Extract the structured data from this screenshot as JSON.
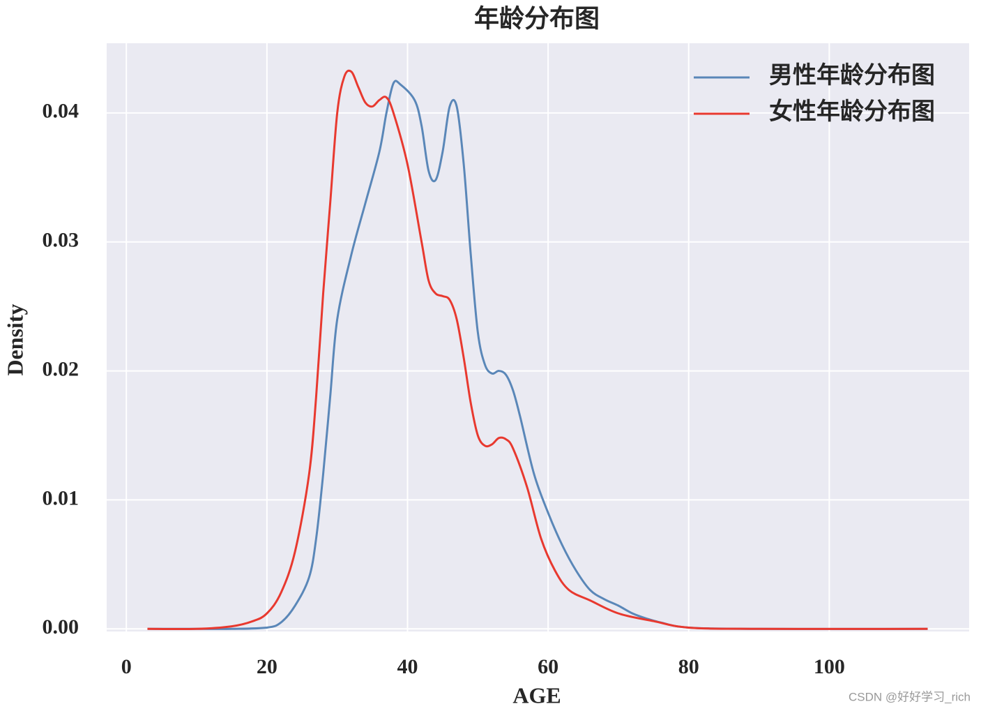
{
  "chart_data": {
    "type": "line",
    "title": "年龄分布图",
    "x_label": "AGE",
    "y_label": "Density",
    "xlim": [
      -2.8,
      119.9
    ],
    "ylim": [
      -0.0002,
      0.0454
    ],
    "xticks": [
      0,
      20,
      40,
      60,
      80,
      100
    ],
    "yticks": [
      {
        "value": 0,
        "label": "0.00"
      },
      0.01,
      0.02,
      0.03,
      0.04
    ],
    "grid": true,
    "legend": "upper right",
    "series": [
      {
        "name": "男性年龄分布图",
        "color": "#5a87b8",
        "x": [
          3,
          10,
          15,
          20,
          22,
          24,
          26,
          27,
          28,
          29,
          30,
          32,
          34,
          36,
          37,
          38,
          39,
          41,
          42,
          43,
          44,
          45,
          46,
          47,
          48,
          49,
          50,
          51,
          52,
          53,
          54,
          55,
          56,
          58,
          60,
          62,
          64,
          66,
          68,
          70,
          72,
          74,
          76,
          80,
          90,
          114
        ],
        "values": [
          0,
          0,
          0,
          0.0001,
          0.0005,
          0.0018,
          0.004,
          0.007,
          0.012,
          0.018,
          0.024,
          0.029,
          0.033,
          0.037,
          0.04,
          0.0423,
          0.0422,
          0.041,
          0.039,
          0.0355,
          0.0348,
          0.037,
          0.0405,
          0.0405,
          0.036,
          0.029,
          0.023,
          0.0205,
          0.0198,
          0.02,
          0.0197,
          0.0185,
          0.0165,
          0.012,
          0.009,
          0.0065,
          0.0045,
          0.003,
          0.0023,
          0.0018,
          0.0012,
          0.0008,
          0.0005,
          0.0001,
          0,
          0
        ]
      },
      {
        "name": "女性年龄分布图",
        "color": "#e8392f",
        "x": [
          3,
          10,
          15,
          18,
          20,
          22,
          24,
          26,
          27,
          28,
          29,
          30,
          31,
          32,
          33,
          34,
          35,
          36,
          37,
          38,
          40,
          42,
          43,
          44,
          45,
          46,
          47,
          48,
          49,
          50,
          51,
          52,
          53,
          54,
          55,
          57,
          59,
          61,
          63,
          66,
          70,
          75,
          80,
          90,
          114
        ],
        "values": [
          0,
          0,
          0.0002,
          0.0006,
          0.0012,
          0.0028,
          0.006,
          0.012,
          0.018,
          0.026,
          0.033,
          0.04,
          0.0428,
          0.0432,
          0.042,
          0.0408,
          0.0405,
          0.041,
          0.0412,
          0.04,
          0.036,
          0.03,
          0.027,
          0.026,
          0.0258,
          0.0255,
          0.024,
          0.021,
          0.0175,
          0.015,
          0.0142,
          0.0143,
          0.0148,
          0.0147,
          0.014,
          0.011,
          0.007,
          0.0045,
          0.003,
          0.0022,
          0.0012,
          0.0006,
          0.0001,
          0,
          0
        ]
      }
    ]
  },
  "watermark": "CSDN @好好学习_rich"
}
